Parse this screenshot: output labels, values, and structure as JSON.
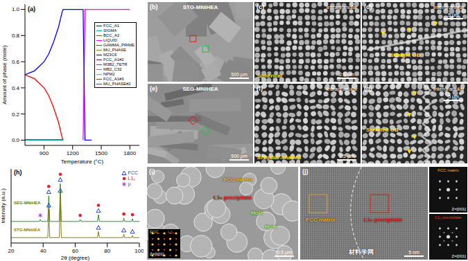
{
  "chart_data": [
    {
      "type": "line",
      "label": "(a)",
      "x_label": "Temperature (°C)",
      "y_label": "Amount of phase (mole)",
      "x": [
        700,
        800,
        900,
        950,
        1000,
        1050,
        1090,
        1100,
        1200,
        1310,
        1320,
        1330,
        1400,
        1600,
        1800
      ],
      "xlim": [
        700,
        1900
      ],
      "xticks": [
        900,
        1200,
        1500,
        1800
      ],
      "ylim": [
        -0.04,
        1.04
      ],
      "yticks": [
        {
          "value": 0,
          "label": "0.0"
        },
        {
          "value": 0.2,
          "label": "0.2"
        },
        {
          "value": 0.4,
          "label": "0.4"
        },
        {
          "value": 0.6,
          "label": "0.6"
        },
        {
          "value": 0.8,
          "label": "0.8"
        },
        {
          "value": 1,
          "label": "1.0"
        }
      ],
      "legend": "upper right",
      "series": [
        {
          "name": "FCC_A1",
          "color": "#0000ff",
          "values": [
            0.5,
            0.53,
            0.6,
            0.66,
            0.75,
            0.86,
            0.98,
            1.0,
            1.0,
            1.0,
            0.5,
            0,
            0,
            null,
            null
          ]
        },
        {
          "name": "SIGMA",
          "color": "#00a0a0",
          "values": [
            0,
            0,
            0,
            0,
            0,
            0,
            0,
            0,
            null,
            null,
            null,
            null,
            null,
            null,
            null
          ]
        },
        {
          "name": "BCC_A2",
          "color": "#00a000",
          "values": [
            0,
            0,
            0,
            0,
            0,
            0,
            0,
            0,
            null,
            null,
            null,
            null,
            null,
            null,
            null
          ]
        },
        {
          "name": "LIQUID",
          "color": "#ff00ff",
          "values": [
            null,
            null,
            null,
            null,
            null,
            null,
            null,
            null,
            null,
            0,
            0.5,
            1.0,
            1.0,
            1.0,
            1.0
          ]
        },
        {
          "name": "GAMMA_PRIME",
          "color": "#ff0000",
          "values": [
            0.5,
            0.47,
            0.4,
            0.34,
            0.25,
            0.14,
            0.02,
            0,
            null,
            null,
            null,
            null,
            null,
            null,
            null
          ]
        },
        {
          "name": "MU_PHASE",
          "color": "#808000",
          "values": [
            0,
            0,
            0,
            0,
            0,
            0,
            0,
            0,
            null,
            null,
            null,
            null,
            null,
            null,
            null
          ]
        },
        {
          "name": "M23C6",
          "color": "#000080",
          "values": [
            0,
            0,
            0,
            0,
            0,
            0,
            0,
            0,
            null,
            null,
            null,
            null,
            null,
            null,
            null
          ]
        },
        {
          "name": "FCC_A1#2",
          "color": "#800080",
          "values": [
            0,
            0,
            0,
            0,
            0,
            0,
            0,
            0,
            null,
            null,
            null,
            null,
            null,
            null,
            null
          ]
        },
        {
          "name": "M3B2_TETR",
          "color": "#008080",
          "values": [
            0,
            0,
            0,
            0,
            0,
            0,
            0,
            0,
            null,
            null,
            null,
            null,
            null,
            null,
            null
          ]
        },
        {
          "name": "MB2_C32",
          "color": "#808080",
          "values": [
            0,
            0,
            0,
            0,
            0,
            0,
            0,
            0,
            null,
            null,
            null,
            null,
            null,
            null,
            null
          ]
        },
        {
          "name": "NPM2",
          "color": "#ff8000",
          "values": [
            0,
            0,
            0,
            0,
            0,
            0,
            0,
            0,
            null,
            null,
            null,
            null,
            null,
            null,
            null
          ]
        },
        {
          "name": "FCC_A1#3",
          "color": "#804000",
          "values": [
            0,
            0,
            0,
            0,
            0,
            0,
            0,
            0,
            null,
            null,
            null,
            null,
            null,
            null,
            null
          ]
        },
        {
          "name": "MU_PHASE#2",
          "color": "#c000c0",
          "values": [
            0,
            0,
            0,
            0,
            0,
            0,
            0,
            0,
            null,
            null,
            null,
            null,
            null,
            null,
            null
          ]
        }
      ]
    },
    {
      "type": "line",
      "label": "(h)",
      "x_label": "2θ (degree)",
      "y_label": "Intensity (a.u.)",
      "xlim": [
        20,
        100
      ],
      "xticks": [
        20,
        40,
        60,
        80,
        100
      ],
      "ylim": [
        0,
        1.1
      ],
      "tick_labels": "x",
      "legend": "upper right",
      "series": [
        {
          "name": "SEG-MNiHEA",
          "color": "#2e8b2e",
          "x": [
            20,
            30,
            37.6,
            38.2,
            38.8,
            42.9,
            43.5,
            44.1,
            50.1,
            50.7,
            51.3,
            62.5,
            63.1,
            63.7,
            73.9,
            74.5,
            75.1,
            89.8,
            90.3,
            90.8,
            95.2,
            95.7,
            96.2,
            100
          ],
          "values": [
            0.32,
            0.32,
            0.32,
            0.35,
            0.32,
            0.32,
            0.7,
            0.32,
            0.32,
            0.88,
            0.32,
            0.32,
            0.35,
            0.32,
            0.32,
            0.42,
            0.32,
            0.32,
            0.37,
            0.32,
            0.32,
            0.36,
            0.32,
            0.32
          ]
        },
        {
          "name": "STG-MNiHEA",
          "color": "#8b7d00",
          "x": [
            20,
            30,
            42.9,
            43.5,
            44.1,
            50.1,
            50.7,
            51.3,
            60,
            73.9,
            74.5,
            75.1,
            89.8,
            90.3,
            90.8,
            95.2,
            95.7,
            96.2,
            100
          ],
          "values": [
            0.08,
            0.08,
            0.08,
            0.5,
            0.08,
            0.08,
            0.72,
            0.08,
            0.08,
            0.08,
            0.17,
            0.08,
            0.08,
            0.13,
            0.08,
            0.08,
            0.11,
            0.08,
            0.08
          ]
        }
      ],
      "phases": [
        {
          "name": "FCC",
          "color": "#1f3fd0",
          "marker": "triangle"
        },
        {
          "name": "L1₂",
          "color": "#e0202a",
          "marker": "circle"
        },
        {
          "name": "μ",
          "color": "#8a2be2",
          "marker": "star"
        }
      ],
      "peak_markers": [
        {
          "x": 38.2,
          "pattern": "SEG-MNiHEA",
          "phase": "μ"
        },
        {
          "x": 43.5,
          "pattern": "SEG-MNiHEA",
          "phase": "FCC"
        },
        {
          "x": 43.5,
          "pattern": "SEG-MNiHEA",
          "phase": "L1₂"
        },
        {
          "x": 50.7,
          "pattern": "SEG-MNiHEA",
          "phase": "FCC"
        },
        {
          "x": 50.7,
          "pattern": "SEG-MNiHEA",
          "phase": "L1₂"
        },
        {
          "x": 63.1,
          "pattern": "SEG-MNiHEA",
          "phase": "L1₂"
        },
        {
          "x": 74.5,
          "pattern": "SEG-MNiHEA",
          "phase": "FCC"
        },
        {
          "x": 74.5,
          "pattern": "SEG-MNiHEA",
          "phase": "L1₂"
        },
        {
          "x": 90.3,
          "pattern": "SEG-MNiHEA",
          "phase": "L1₂"
        },
        {
          "x": 95.7,
          "pattern": "SEG-MNiHEA",
          "phase": "L1₂"
        },
        {
          "x": 43.5,
          "pattern": "STG-MNiHEA",
          "phase": "FCC"
        },
        {
          "x": 50.7,
          "pattern": "STG-MNiHEA",
          "phase": "FCC"
        },
        {
          "x": 74.5,
          "pattern": "STG-MNiHEA",
          "phase": "FCC"
        },
        {
          "x": 90.3,
          "pattern": "STG-MNiHEA",
          "phase": "FCC"
        },
        {
          "x": 95.7,
          "pattern": "STG-MNiHEA",
          "phase": "FCC"
        }
      ]
    }
  ],
  "micrographs": [
    {
      "label": "(b)",
      "title": "STG-MNiHEA",
      "scale_bar": "500 μm"
    },
    {
      "label": "(c)",
      "title": "Intragranular",
      "caption": "Spherical",
      "scale_bar": "2.5 μm"
    },
    {
      "label": "(d)",
      "title": "Intergranular",
      "caption": "Straight GB",
      "scale_bar": "5 μm"
    },
    {
      "label": "(e)",
      "title": "SEG-MNiHEA",
      "scale_bar": "500 μm"
    },
    {
      "label": "(f)",
      "title": "Intragranular",
      "caption": "Irregular-shaped",
      "scale_bar": "2.5 μm"
    },
    {
      "label": "(g)",
      "title": "Intergranular",
      "caption": "Serrated GB",
      "scale_bar": "5 μm"
    },
    {
      "label": "(i)",
      "annotations": [
        "FCC matrix",
        "L1₂ precipitate",
        "Hole",
        "Hole"
      ],
      "scale_bar": "0.5 μm",
      "inset": {
        "labels": [
          "FCC",
          "L1₂"
        ],
        "zone": "Z=[001]"
      }
    },
    {
      "label": "(j)",
      "annotations": [
        "FCC matrix",
        "L1₂ precipitate"
      ],
      "scale_bar": "5 nm",
      "insets": [
        {
          "title": "FCC matrix",
          "zone": "Z=[001]"
        },
        {
          "title": "L1₂ precipitate",
          "zone": "Z=[001]"
        }
      ]
    }
  ],
  "watermark": "材料学网"
}
